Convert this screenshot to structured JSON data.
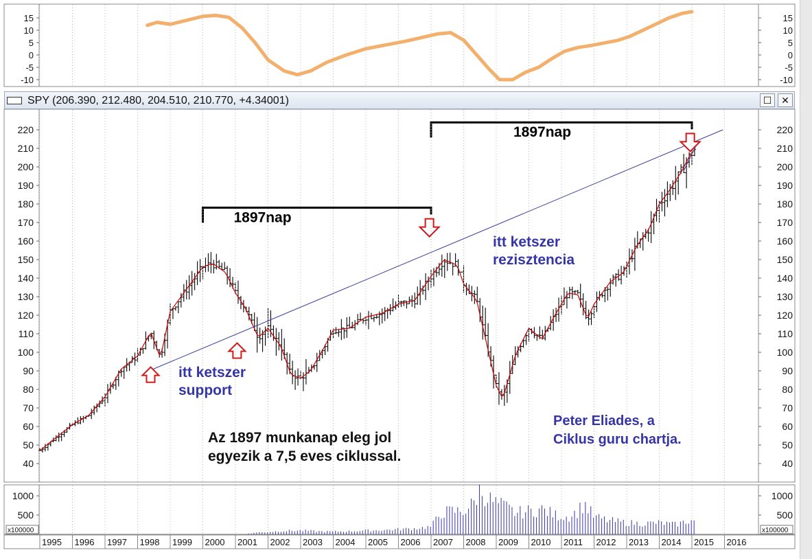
{
  "window": {
    "title": "SPY (206.390, 212.480, 204.510, 210.770, +4.34001)",
    "maximize_label": "☐",
    "close_label": "✕"
  },
  "chart_data": [
    {
      "type": "line",
      "panel": "cycle-indicator",
      "ylim": [
        -12,
        19
      ],
      "y_ticks": [
        "15",
        "10",
        "5",
        "0",
        "-5",
        "-10"
      ],
      "color": "#f2b06c",
      "x": [
        1998.3,
        1998.6,
        1999.0,
        1999.5,
        2000.0,
        2000.4,
        2000.8,
        2001.2,
        2001.6,
        2002.0,
        2002.5,
        2002.9,
        2003.3,
        2003.8,
        2004.4,
        2005.0,
        2005.6,
        2006.2,
        2006.7,
        2007.2,
        2007.6,
        2008.0,
        2008.4,
        2008.8,
        2009.1,
        2009.5,
        2009.9,
        2010.3,
        2010.7,
        2011.1,
        2011.5,
        2011.9,
        2012.3,
        2012.7,
        2013.1,
        2013.5,
        2013.9,
        2014.3,
        2014.7,
        2015.0
      ],
      "y": [
        12.0,
        13.2,
        12.4,
        14.0,
        15.6,
        16.0,
        15.2,
        11.0,
        5.0,
        -2.0,
        -6.5,
        -8.0,
        -6.5,
        -3.0,
        0.0,
        2.5,
        4.0,
        5.5,
        7.0,
        8.5,
        9.0,
        6.0,
        0.0,
        -6.0,
        -10.0,
        -10.0,
        -7.0,
        -5.0,
        -1.5,
        1.5,
        3.0,
        3.8,
        4.8,
        5.8,
        7.5,
        10.0,
        12.5,
        15.0,
        16.8,
        17.5
      ]
    },
    {
      "type": "ohlc",
      "panel": "price",
      "series_name": "SPY",
      "ylim": [
        33,
        228
      ],
      "y_ticks": [
        "220",
        "210",
        "200",
        "190",
        "180",
        "170",
        "160",
        "150",
        "140",
        "130",
        "120",
        "110",
        "100",
        "90",
        "80",
        "70",
        "60",
        "50",
        "40"
      ],
      "x_labels": [
        "1995",
        "1996",
        "1997",
        "1998",
        "1999",
        "2000",
        "2001",
        "2002",
        "2003",
        "2004",
        "2005",
        "2006",
        "2007",
        "2008",
        "2009",
        "2010",
        "2011",
        "2012",
        "2013",
        "2014",
        "2015",
        "2016"
      ],
      "bar_color": "#000000",
      "ma_color": "#cc0000",
      "close_points": [
        [
          1995.0,
          47
        ],
        [
          1995.5,
          54
        ],
        [
          1996.0,
          61
        ],
        [
          1996.5,
          66
        ],
        [
          1997.0,
          76
        ],
        [
          1997.5,
          91
        ],
        [
          1998.0,
          98
        ],
        [
          1998.4,
          111
        ],
        [
          1998.7,
          97
        ],
        [
          1999.0,
          122
        ],
        [
          1999.5,
          134
        ],
        [
          2000.0,
          146
        ],
        [
          2000.3,
          148
        ],
        [
          2000.7,
          143
        ],
        [
          2001.0,
          132
        ],
        [
          2001.3,
          124
        ],
        [
          2001.7,
          108
        ],
        [
          2002.0,
          113
        ],
        [
          2002.4,
          103
        ],
        [
          2002.7,
          88
        ],
        [
          2003.0,
          86
        ],
        [
          2003.3,
          90
        ],
        [
          2003.7,
          102
        ],
        [
          2004.0,
          112
        ],
        [
          2004.5,
          113
        ],
        [
          2005.0,
          119
        ],
        [
          2005.5,
          121
        ],
        [
          2006.0,
          126
        ],
        [
          2006.5,
          128
        ],
        [
          2007.0,
          141
        ],
        [
          2007.4,
          150
        ],
        [
          2007.8,
          147
        ],
        [
          2008.0,
          137
        ],
        [
          2008.4,
          128
        ],
        [
          2008.7,
          105
        ],
        [
          2009.0,
          82
        ],
        [
          2009.2,
          75
        ],
        [
          2009.6,
          99
        ],
        [
          2010.0,
          113
        ],
        [
          2010.4,
          107
        ],
        [
          2010.8,
          120
        ],
        [
          2011.2,
          132
        ],
        [
          2011.5,
          131
        ],
        [
          2011.8,
          118
        ],
        [
          2012.0,
          126
        ],
        [
          2012.5,
          138
        ],
        [
          2012.9,
          143
        ],
        [
          2013.3,
          157
        ],
        [
          2013.7,
          167
        ],
        [
          2014.0,
          180
        ],
        [
          2014.3,
          187
        ],
        [
          2014.7,
          198
        ],
        [
          2014.9,
          205
        ],
        [
          2015.1,
          210
        ]
      ],
      "trendline": {
        "from": [
          1998.35,
          90
        ],
        "to": [
          2015.95,
          220
        ],
        "color": "#3b3b9e"
      },
      "short_trendline": {
        "from": [
          2014.75,
          198
        ],
        "to": [
          2015.2,
          214
        ],
        "color": "#3b3b9e"
      },
      "brackets": [
        {
          "label": "1897nap",
          "from": 2000.0,
          "to": 2007.0,
          "at": 178
        },
        {
          "label": "1897nap",
          "from": 2007.0,
          "to": 2015.0,
          "at": 224
        }
      ],
      "up_arrows": [
        [
          1998.4,
          92
        ],
        [
          2001.05,
          105
        ]
      ],
      "down_arrows": [
        [
          2006.95,
          172
        ],
        [
          2014.95,
          218
        ]
      ]
    },
    {
      "type": "bar",
      "panel": "volume",
      "ylim": [
        0,
        1300
      ],
      "y_ticks": [
        "1000",
        "500"
      ],
      "unit_label": "x100000",
      "color": "#3535a8",
      "x": [
        2001.5,
        2002.0,
        2002.5,
        2003.0,
        2003.5,
        2004.0,
        2004.5,
        2005.0,
        2005.5,
        2006.0,
        2006.5,
        2007.0,
        2007.3,
        2007.6,
        2008.0,
        2008.3,
        2008.5,
        2008.8,
        2009.0,
        2009.3,
        2009.6,
        2010.0,
        2010.4,
        2010.8,
        2011.2,
        2011.5,
        2011.7,
        2012.0,
        2012.5,
        2013.0,
        2013.5,
        2014.0,
        2014.5,
        2014.9,
        2015.1
      ],
      "values": [
        40,
        60,
        90,
        100,
        80,
        70,
        80,
        100,
        110,
        130,
        150,
        200,
        550,
        600,
        600,
        800,
        1150,
        900,
        800,
        700,
        550,
        600,
        650,
        500,
        450,
        600,
        800,
        450,
        350,
        300,
        280,
        300,
        250,
        350,
        350
      ]
    }
  ],
  "annotations": {
    "support": "itt ketszer\nsupport",
    "resistance": "itt ketszer\nrezisztencia",
    "cycle_note": "Az 1897 munkanap eleg jol\negyezik a 7,5 eves ciklussal.",
    "credit": "Peter Eliades, a\nCiklus guru chartja."
  }
}
